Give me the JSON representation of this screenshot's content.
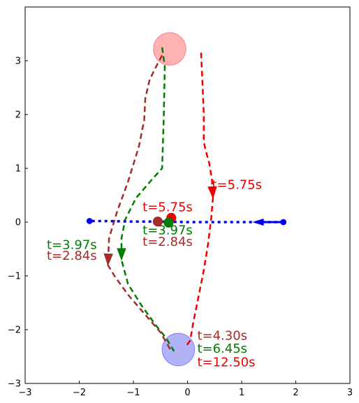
{
  "chart_data": {
    "type": "line",
    "xlim": [
      -3,
      3
    ],
    "ylim": [
      -3,
      4
    ],
    "xticks": [
      -3,
      -2,
      -1,
      0,
      1,
      2,
      3
    ],
    "yticks": [
      -3,
      -2,
      -1,
      0,
      1,
      2,
      3
    ],
    "xtick_labels": [
      "−3",
      "−2",
      "−1",
      "0",
      "1",
      "2",
      "3"
    ],
    "ytick_labels": [
      "−3",
      "−2",
      "−1",
      "0",
      "1",
      "2",
      "3"
    ],
    "grid": false,
    "colors": {
      "red": "#ee0000",
      "green": "#007d00",
      "brown": "#a52a2a",
      "blue": "#0000ee",
      "goal_red": "#ff8080",
      "goal_blue": "#7f7ff5"
    },
    "regions": [
      {
        "cx": -0.33,
        "cy": 3.22,
        "r": 0.3,
        "color": "red"
      },
      {
        "cx": -0.17,
        "cy": -2.37,
        "r": 0.3,
        "color": "blue"
      }
    ],
    "series": [
      {
        "color": "red",
        "style": "dashed",
        "x": [
          0.25,
          0.28,
          0.3,
          0.3,
          0.33,
          0.4,
          0.45,
          0.47,
          0.44,
          0.38,
          0.3,
          0.2,
          0.1,
          0.05,
          -0.02
        ],
        "y": [
          3.15,
          2.5,
          2.0,
          1.5,
          1.35,
          1.1,
          0.8,
          0.45,
          0.1,
          -0.4,
          -0.9,
          -1.4,
          -1.9,
          -2.2,
          -2.3
        ],
        "arrow_at": 7
      },
      {
        "color": "green",
        "style": "dashed",
        "x": [
          -0.47,
          -0.42,
          -0.43,
          -0.44,
          -0.47,
          -0.65,
          -0.95,
          -1.15,
          -1.22,
          -1.22,
          -1.1,
          -0.85,
          -0.6,
          -0.4,
          -0.25
        ],
        "y": [
          3.25,
          2.9,
          2.4,
          1.9,
          1.0,
          0.8,
          0.45,
          0.05,
          -0.3,
          -0.7,
          -1.15,
          -1.55,
          -1.9,
          -2.15,
          -2.4
        ],
        "arrow_at": 9
      },
      {
        "color": "brown",
        "style": "dashed",
        "x": [
          -0.47,
          -0.55,
          -0.7,
          -0.78,
          -0.8,
          -0.9,
          -1.1,
          -1.3,
          -1.45,
          -1.47,
          -1.35,
          -1.1,
          -0.8,
          -0.5,
          -0.3
        ],
        "y": [
          3.1,
          2.95,
          2.65,
          2.3,
          1.9,
          1.4,
          0.75,
          0.2,
          -0.3,
          -0.8,
          -1.0,
          -1.35,
          -1.7,
          -2.05,
          -2.4
        ],
        "arrow_at": 9
      },
      {
        "color": "blue",
        "style": "dotted",
        "x": [
          1.77,
          1.2,
          0.5,
          0.0,
          -0.5,
          -1.0,
          -1.5,
          -1.81
        ],
        "y": [
          0.0,
          0.0,
          0.0,
          0.0,
          0.01,
          0.01,
          0.02,
          0.02
        ],
        "arrow_from": [
          1.75,
          0.0
        ],
        "arrow_to": [
          1.22,
          0.0
        ]
      }
    ],
    "points": [
      {
        "x": 1.77,
        "y": 0.0,
        "color": "blue",
        "r": 0.05
      },
      {
        "x": -1.81,
        "y": 0.02,
        "color": "blue",
        "r": 0.05
      },
      {
        "x": -0.3,
        "y": 0.08,
        "color": "red",
        "r": 0.085
      },
      {
        "x": -0.55,
        "y": 0.01,
        "color": "brown",
        "r": 0.085
      },
      {
        "x": -0.35,
        "y": -0.01,
        "color": "green",
        "r": 0.085
      }
    ],
    "annotations": [
      {
        "text": "t=5.75s",
        "x": 0.45,
        "y": 0.62,
        "color": "red"
      },
      {
        "text": "t=5.75s",
        "x": -0.83,
        "y": 0.2,
        "color": "red"
      },
      {
        "text": "t=3.97s",
        "x": -0.83,
        "y": -0.23,
        "color": "green"
      },
      {
        "text": "t=2.84s",
        "x": -0.83,
        "y": -0.44,
        "color": "brown"
      },
      {
        "text": "t=3.97s",
        "x": -2.6,
        "y": -0.5,
        "color": "green"
      },
      {
        "text": "t=2.84s",
        "x": -2.6,
        "y": -0.7,
        "color": "brown"
      },
      {
        "text": "t=4.30s",
        "x": 0.18,
        "y": -2.19,
        "color": "brown"
      },
      {
        "text": "t=6.45s",
        "x": 0.18,
        "y": -2.43,
        "color": "green"
      },
      {
        "text": "t=12.50s",
        "x": 0.18,
        "y": -2.68,
        "color": "red"
      }
    ]
  }
}
